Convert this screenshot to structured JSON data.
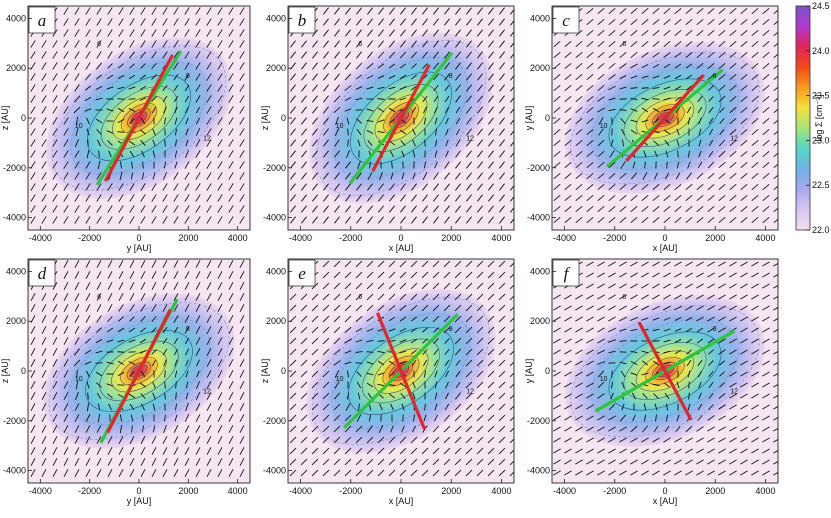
{
  "chart_data": {
    "type": "heatmap",
    "description_units": "AU",
    "colorbar": {
      "label": "log Σ [cm⁻²]",
      "ticks": [
        "24.5",
        "24.0",
        "23.5",
        "23.0",
        "22.5",
        "22.0"
      ],
      "range": [
        22.0,
        24.5
      ],
      "colors": [
        "#7a55c8",
        "#b13ad0",
        "#e2245c",
        "#f4481a",
        "#f79a1e",
        "#f2e23a",
        "#a8e27a",
        "#56d6c4",
        "#6fb2e8",
        "#a9a8ee",
        "#d6c6ef",
        "#f4dcec"
      ]
    },
    "panels": [
      {
        "label": "a",
        "xlabel": "y [AU]",
        "ylabel": "z [AU]",
        "angle_deg": 35,
        "green_angle_deg": 58,
        "red_angle_deg": 62,
        "green_length_au": 3200,
        "red_length_au": 2900
      },
      {
        "label": "b",
        "xlabel": "x [AU]",
        "ylabel": "z [AU]",
        "angle_deg": 40,
        "green_angle_deg": 52,
        "red_angle_deg": 62,
        "green_length_au": 3300,
        "red_length_au": 2400
      },
      {
        "label": "c",
        "xlabel": "x [AU]",
        "ylabel": "y [AU]",
        "angle_deg": 25,
        "green_angle_deg": 40,
        "red_angle_deg": 48,
        "green_length_au": 3000,
        "red_length_au": 2300
      },
      {
        "label": "d",
        "xlabel": "y [AU]",
        "ylabel": "z [AU]",
        "angle_deg": 30,
        "green_angle_deg": 62,
        "red_angle_deg": 63,
        "green_length_au": 3300,
        "red_length_au": 2800
      },
      {
        "label": "e",
        "xlabel": "x [AU]",
        "ylabel": "z [AU]",
        "angle_deg": 35,
        "green_angle_deg": 45,
        "red_angle_deg": -68,
        "green_length_au": 3200,
        "red_length_au": 2500
      },
      {
        "label": "f",
        "xlabel": "x [AU]",
        "ylabel": "y [AU]",
        "angle_deg": 25,
        "green_angle_deg": 30,
        "red_angle_deg": -62,
        "green_length_au": 3200,
        "red_length_au": 2200
      }
    ],
    "x_ticks": [
      "-4000",
      "-2000",
      "0",
      "2000",
      "4000"
    ],
    "y_ticks": [
      "4000",
      "2000",
      "0",
      "-2000",
      "-4000"
    ],
    "xlim": [
      -4500,
      4500
    ],
    "ylim": [
      -4500,
      4500
    ],
    "contour_labels": [
      "6",
      "8",
      "10",
      "12"
    ]
  }
}
